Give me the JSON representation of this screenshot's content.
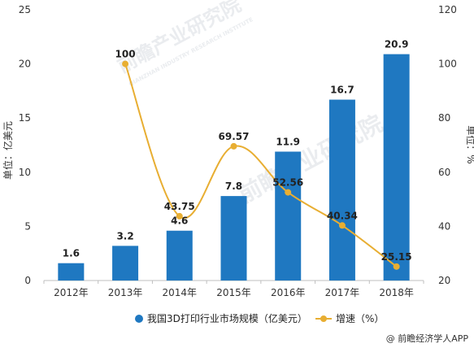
{
  "chart_data": {
    "type": "bar",
    "categories": [
      "2012年",
      "2013年",
      "2014年",
      "2015年",
      "2016年",
      "2017年",
      "2018年"
    ],
    "series": [
      {
        "name": "我国3D打印行业市场规模（亿美元）",
        "type": "bar",
        "axis": "left",
        "color": "#1f78c1",
        "values": [
          1.6,
          3.2,
          4.6,
          7.8,
          11.9,
          16.7,
          20.9
        ],
        "labels": [
          "1.6",
          "3.2",
          "4.6",
          "7.8",
          "11.9",
          "16.7",
          "20.9"
        ]
      },
      {
        "name": "增速（%）",
        "type": "line",
        "axis": "right",
        "color": "#e8ae32",
        "values": [
          null,
          100,
          43.75,
          69.57,
          52.56,
          40.34,
          25.15
        ],
        "labels": [
          null,
          "100",
          "43.75",
          "69.57",
          "52.56",
          "40.34",
          "25.15"
        ]
      }
    ],
    "ylabel_left": "单位：亿美元",
    "ylabel_right": "单位：%",
    "ylim_left": [
      0,
      25
    ],
    "ylim_right": [
      20,
      120
    ],
    "yticks_left": [
      "0",
      "5",
      "10",
      "15",
      "20",
      "25"
    ],
    "yticks_right": [
      "20",
      "40",
      "60",
      "80",
      "100",
      "120"
    ],
    "grid": false,
    "legend_position": "bottom"
  },
  "watermark": {
    "text": "前瞻产业研究院",
    "subtext": "QIANZHAN INDUSTRY RESEARCH INSTITUTE"
  },
  "credit": "@ 前瞻经济学人APP"
}
